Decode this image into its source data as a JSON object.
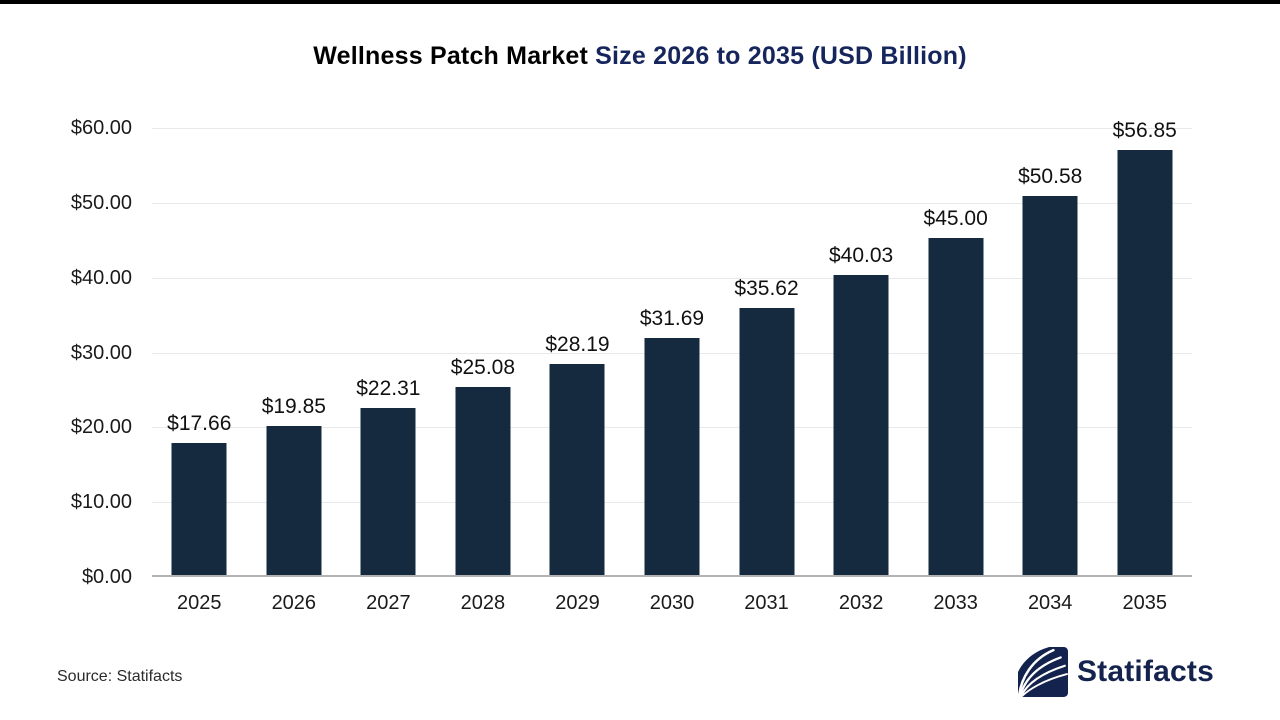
{
  "title": {
    "part1": "Wellness Patch Market ",
    "part2": "Size 2026 to 2035 (USD Billion)"
  },
  "chart_data": {
    "type": "bar",
    "title": "Wellness Patch Market Size 2026 to 2035 (USD Billion)",
    "categories": [
      "2025",
      "2026",
      "2027",
      "2028",
      "2029",
      "2030",
      "2031",
      "2032",
      "2033",
      "2034",
      "2035"
    ],
    "values": [
      17.66,
      19.85,
      22.31,
      25.08,
      28.19,
      31.69,
      35.62,
      40.03,
      45.0,
      50.58,
      56.85
    ],
    "value_labels": [
      "$17.66",
      "$19.85",
      "$22.31",
      "$25.08",
      "$28.19",
      "$31.69",
      "$35.62",
      "$40.03",
      "$45.00",
      "$50.58",
      "$56.85"
    ],
    "xlabel": "",
    "ylabel": "",
    "ylim": [
      0,
      60
    ],
    "y_ticks": [
      0,
      10,
      20,
      30,
      40,
      50,
      60
    ],
    "y_tick_labels": [
      "$0.00",
      "$10.00",
      "$20.00",
      "$30.00",
      "$40.00",
      "$50.00",
      "$60.00"
    ],
    "grid": true,
    "legend": false,
    "bar_color": "#152A3E"
  },
  "footer": {
    "source": "Source: Statifacts",
    "brand": "Statifacts"
  },
  "colors": {
    "bar": "#152A3E",
    "title_accent": "#16265C",
    "brand_navy": "#14234E",
    "gridline": "#E9E9E9",
    "axis_line": "#B3B3B3",
    "top_strip": "#000000"
  },
  "icons": {
    "logo": "statifacts-logo-icon"
  }
}
